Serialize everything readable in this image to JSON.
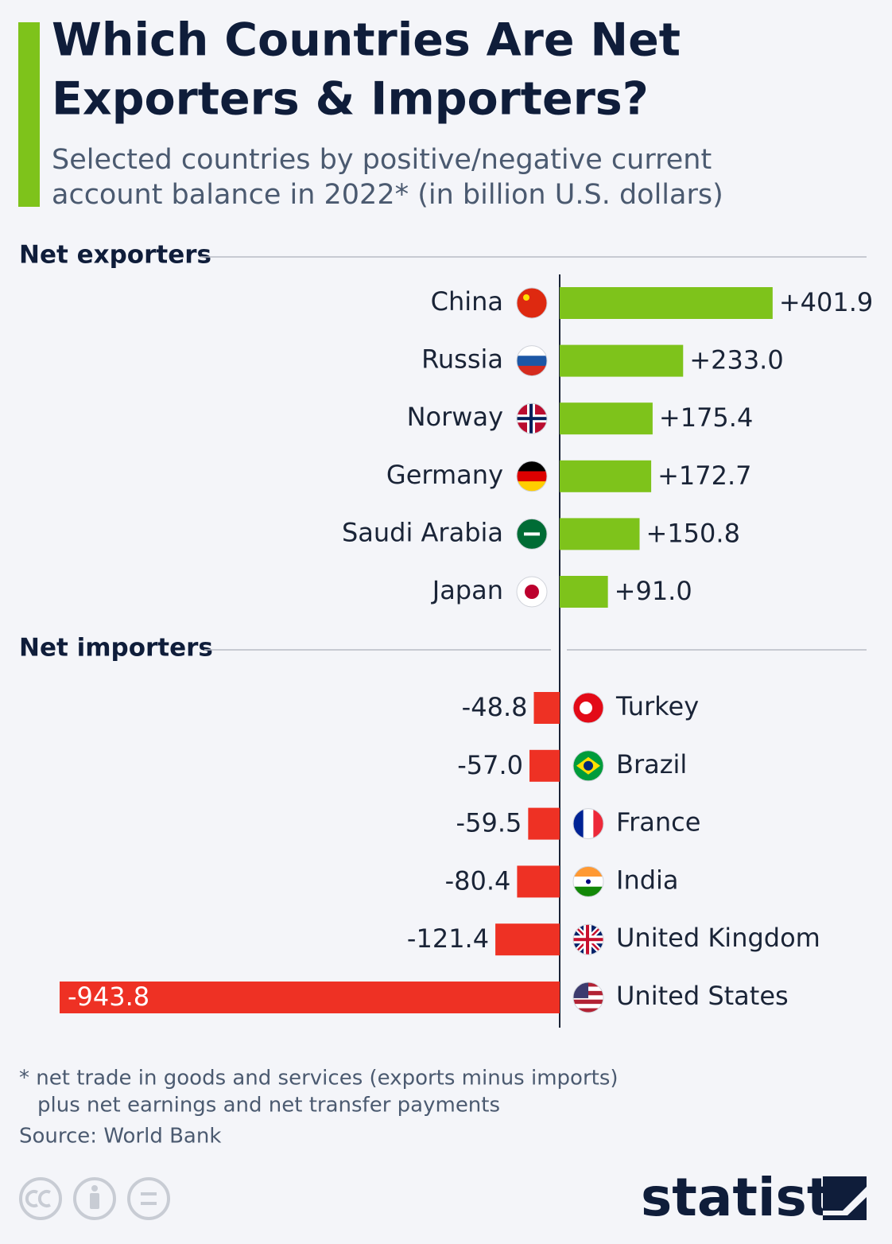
{
  "chart_data": {
    "type": "bar",
    "title": [
      "Which Countries Are Net",
      "Exporters & Importers?"
    ],
    "subtitle": [
      "Selected countries by positive/negative current",
      "account balance in 2022* (in billion U.S. dollars)"
    ],
    "groups": [
      {
        "name": "Net exporters",
        "color": "#7ec31b",
        "categories": [
          "China",
          "Russia",
          "Norway",
          "Germany",
          "Saudi Arabia",
          "Japan"
        ],
        "values": [
          401.9,
          233.0,
          175.4,
          172.7,
          150.8,
          91.0
        ],
        "value_labels": [
          "+401.9",
          "+233.0",
          "+175.4",
          "+172.7",
          "+150.8",
          "+91.0"
        ]
      },
      {
        "name": "Net importers",
        "color": "#ee3124",
        "categories": [
          "Turkey",
          "Brazil",
          "France",
          "India",
          "United Kingdom",
          "United States"
        ],
        "values": [
          -48.8,
          -57.0,
          -59.5,
          -80.4,
          -121.4,
          -943.8
        ],
        "value_labels": [
          "-48.8",
          "-57.0",
          "-59.5",
          "-80.4",
          "-121.4",
          "-943.8"
        ]
      }
    ],
    "footnote": [
      "* net trade in goods and services (exports minus imports)",
      "plus net earnings and net transfer payments"
    ],
    "source": "Source: World Bank",
    "logo": "statista"
  }
}
